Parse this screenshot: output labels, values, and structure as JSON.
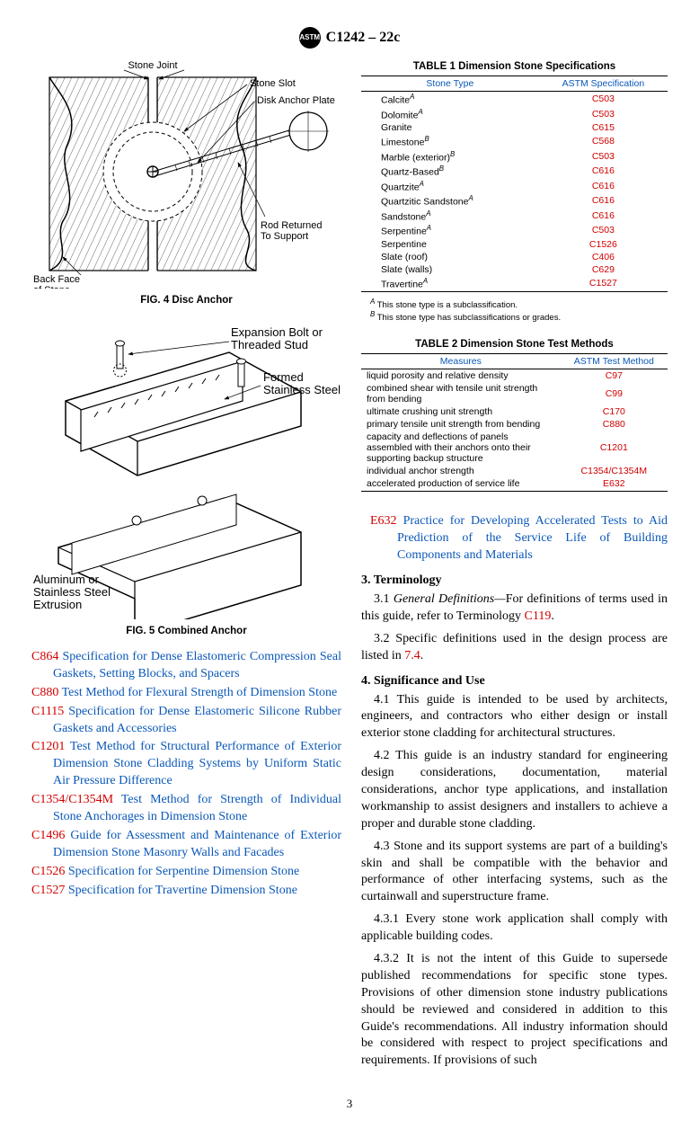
{
  "header": {
    "designation": "C1242 – 22c",
    "logo_text": "ASTM"
  },
  "fig4": {
    "caption": "FIG. 4 Disc Anchor",
    "labels": {
      "stone_joint": "Stone Joint",
      "stone_slot": "Stone Slot",
      "disk_anchor": "Disk Anchor Plate",
      "rod_returned": "Rod Returned\nTo Support",
      "back_face": "Back Face\nof Stone"
    }
  },
  "fig5": {
    "caption": "FIG. 5 Combined Anchor",
    "labels": {
      "expansion": "Expansion Bolt or\nThreaded Stud",
      "formed": "Formed\nStainless Steel",
      "extrusion": "Aluminum or\nStainless Steel\nExtrusion"
    }
  },
  "refs_left": [
    {
      "code": "C864",
      "title": "Specification for Dense Elastomeric Compression Seal Gaskets, Setting Blocks, and Spacers"
    },
    {
      "code": "C880",
      "title": "Test Method for Flexural Strength of Dimension Stone"
    },
    {
      "code": "C1115",
      "title": "Specification for Dense Elastomeric Silicone Rubber Gaskets and Accessories"
    },
    {
      "code": "C1201",
      "title": "Test Method for Structural Performance of Exterior Dimension Stone Cladding Systems by Uniform Static Air Pressure Difference"
    },
    {
      "code": "C1354/C1354M",
      "title": "Test Method for Strength of Individual Stone Anchorages in Dimension Stone"
    },
    {
      "code": "C1496",
      "title": "Guide for Assessment and Maintenance of Exterior Dimension Stone Masonry Walls and Facades"
    },
    {
      "code": "C1526",
      "title": "Specification for Serpentine Dimension Stone"
    },
    {
      "code": "C1527",
      "title": "Specification for Travertine Dimension Stone"
    }
  ],
  "table1": {
    "title": "TABLE 1 Dimension Stone Specifications",
    "col1": "Stone Type",
    "col2": "ASTM Specification",
    "rows": [
      {
        "stone": "Calcite",
        "sup": "A",
        "spec": "C503"
      },
      {
        "stone": "Dolomite",
        "sup": "A",
        "spec": "C503"
      },
      {
        "stone": "Granite",
        "sup": "",
        "spec": "C615"
      },
      {
        "stone": "Limestone",
        "sup": "B",
        "spec": "C568"
      },
      {
        "stone": "Marble (exterior)",
        "sup": "B",
        "spec": "C503"
      },
      {
        "stone": "Quartz-Based",
        "sup": "B",
        "spec": "C616"
      },
      {
        "stone": "Quartzite",
        "sup": "A",
        "spec": "C616"
      },
      {
        "stone": "Quartzitic Sandstone",
        "sup": "A",
        "spec": "C616"
      },
      {
        "stone": "Sandstone",
        "sup": "A",
        "spec": "C616"
      },
      {
        "stone": "Serpentine",
        "sup": "A",
        "spec": "C503"
      },
      {
        "stone": "Serpentine",
        "sup": "",
        "spec": "C1526"
      },
      {
        "stone": "Slate (roof)",
        "sup": "",
        "spec": "C406"
      },
      {
        "stone": "Slate (walls)",
        "sup": "",
        "spec": "C629"
      },
      {
        "stone": "Travertine",
        "sup": "A",
        "spec": "C1527"
      }
    ],
    "footnote_a": "This stone type is a subclassification.",
    "footnote_b": "This stone type has subclassifications or grades."
  },
  "table2": {
    "title": "TABLE 2 Dimension Stone Test Methods",
    "col1": "Measures",
    "col2": "ASTM Test Method",
    "rows": [
      {
        "measure": "liquid porosity and relative density",
        "method": "C97"
      },
      {
        "measure": "combined shear with tensile unit strength from bending",
        "method": "C99"
      },
      {
        "measure": "ultimate crushing unit strength",
        "method": "C170"
      },
      {
        "measure": "primary tensile unit strength from bending",
        "method": "C880"
      },
      {
        "measure": "capacity and deflections of panels assembled with their anchors onto their supporting backup structure",
        "method": "C1201"
      },
      {
        "measure": "individual anchor strength",
        "method": "C1354/C1354M"
      },
      {
        "measure": "accelerated production of service life",
        "method": "E632"
      }
    ]
  },
  "ref_right": {
    "code": "E632",
    "title": "Practice for Developing Accelerated Tests to Aid Prediction of the Service Life of Building Components and Materials"
  },
  "sec3": {
    "heading": "3. Terminology",
    "p31a": "3.1 ",
    "p31b": "General Definitions—",
    "p31c": "For definitions of terms used in this guide, refer to Terminology ",
    "p31d": "C119",
    "p31e": ".",
    "p32a": "3.2 Specific definitions used in the design process are listed in ",
    "p32b": "7.4",
    "p32c": "."
  },
  "sec4": {
    "heading": "4. Significance and Use",
    "p41": "4.1 This guide is intended to be used by architects, engineers, and contractors who either design or install exterior stone cladding for architectural structures.",
    "p42": "4.2 This guide is an industry standard for engineering design considerations, documentation, material considerations, anchor type applications, and installation workmanship to assist designers and installers to achieve a proper and durable stone cladding.",
    "p43": "4.3 Stone and its support systems are part of a building's skin and shall be compatible with the behavior and performance of other interfacing systems, such as the curtainwall and superstructure frame.",
    "p431": "4.3.1 Every stone work application shall comply with applicable building codes.",
    "p432": "4.3.2 It is not the intent of this Guide to supersede published recommendations for specific stone types. Provisions of other dimension stone industry publications should be reviewed and considered in addition to this Guide's recommendations. All industry information should be considered with respect to project specifications and requirements. If provisions of such"
  },
  "page_number": "3"
}
